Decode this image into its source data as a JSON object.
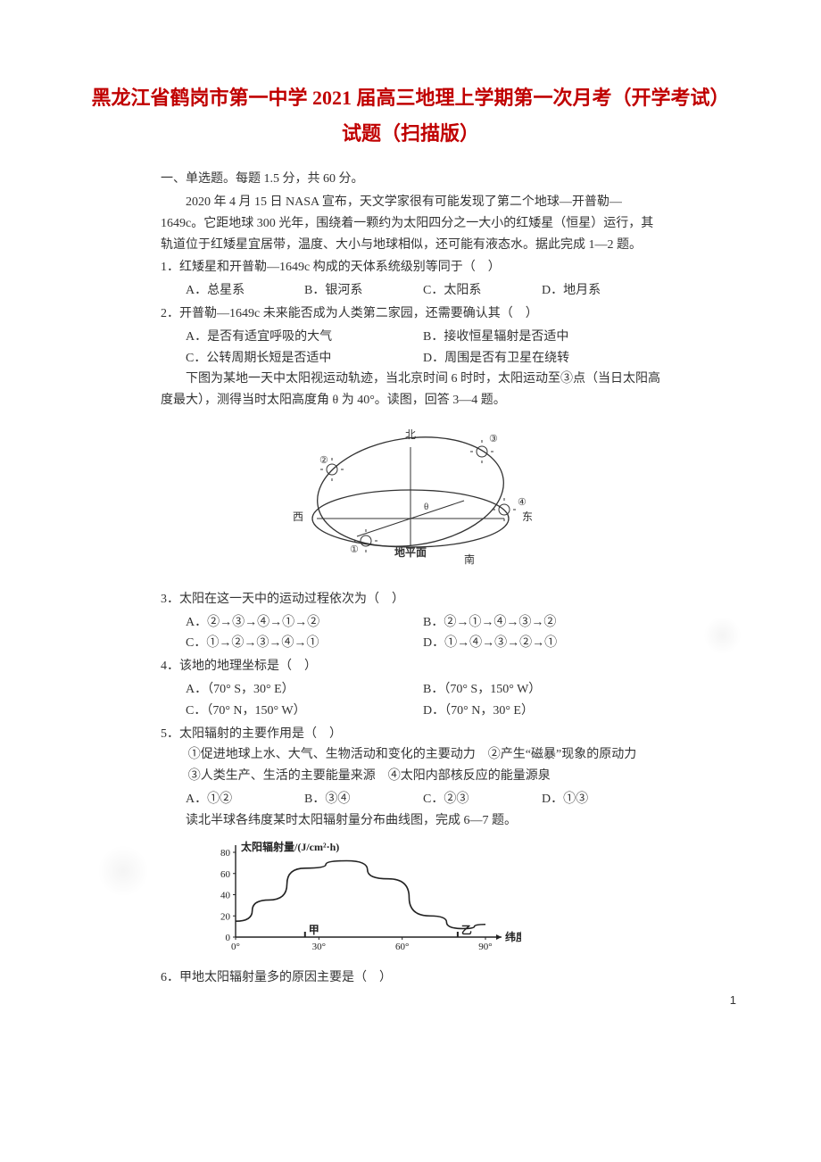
{
  "title_line1": "黑龙江省鹤岗市第一中学 2021 届高三地理上学期第一次月考（开学考试）",
  "title_line2": "试题（扫描版）",
  "section1_head": "一、单选题。每题 1.5 分，共 60 分。",
  "passage1_p1": "2020 年 4 月 15 日 NASA 宣布，天文学家很有可能发现了第二个地球—开普勒—1649c。它距地球 300 光年，围绕着一颗约为太阳四分之一大小的红矮星（恒星）运行，其轨道位于红矮星宜居带，温度、大小与地球相似，还可能有液态水。据此完成 1—2 题。",
  "q1": "1．红矮星和开普勒—1649c 构成的天体系统级别等同于（　）",
  "q1_opts": [
    "A．总星系",
    "B．银河系",
    "C．太阳系",
    "D．地月系"
  ],
  "q2": "2．开普勒—1649c 未来能否成为人类第二家园，还需要确认其（　）",
  "q2_opts": [
    "A．是否有适宜呼吸的大气",
    "B．接收恒星辐射是否适中",
    "C．公转周期长短是否适中",
    "D．周围是否有卫星在绕转"
  ],
  "passage2_p1": "下图为某地一天中太阳视运动轨迹，当北京时间 6 时时，太阳运动至③点（当日太阳高度最大），测得当时太阳高度角 θ 为 40°。读图，回答 3—4 题。",
  "diagram_labels": {
    "north": "北",
    "south": "南",
    "east": "东",
    "west": "西",
    "points": [
      "①",
      "②",
      "③",
      "④"
    ],
    "horizon": "地平面"
  },
  "q3": "3．太阳在这一天中的运动过程依次为（　）",
  "q3_opts": [
    "A．②→③→④→①→②",
    "B．②→①→④→③→②",
    "C．①→②→③→④→①",
    "D．①→④→③→②→①"
  ],
  "q4": "4．该地的地理坐标是（　）",
  "q4_opts": [
    "A．（70° S，30° E）",
    "B．（70° S，150° W）",
    "C．（70° N，150° W）",
    "D．（70° N，30° E）"
  ],
  "q5": "5．太阳辐射的主要作用是（　）",
  "q5_stmts": "①促进地球上水、大气、生物活动和变化的主要动力　②产生“磁暴”现象的原动力　③人类生产、生活的主要能量来源　④太阳内部核反应的能量源泉",
  "q5_opts": [
    "A．①②",
    "B．③④",
    "C．②③",
    "D．①③"
  ],
  "passage3_p1": "读北半球各纬度某时太阳辐射量分布曲线图，完成 6—7 题。",
  "chart": {
    "type": "line",
    "ylabel": "太阳辐射量/(J/cm²·h)",
    "xlabel": "纬度",
    "xticks": [
      "0°",
      "30°",
      "60°",
      "90°"
    ],
    "yticks": [
      0,
      20,
      40,
      60,
      80
    ],
    "ylim": [
      0,
      80
    ],
    "points_x": [
      0,
      12,
      25,
      40,
      55,
      70,
      82,
      90
    ],
    "points_y": [
      15,
      35,
      65,
      72,
      55,
      20,
      8,
      12
    ],
    "markers": {
      "甲": {
        "x": 25,
        "y": 0,
        "label": "甲"
      },
      "乙": {
        "x": 80,
        "y": 0,
        "label": "乙"
      }
    },
    "line_color": "#222222",
    "axis_color": "#222222",
    "text_color": "#222222",
    "background": "#ffffff",
    "font_size_label": 12,
    "font_size_tick": 11
  },
  "q6": "6．甲地太阳辐射量多的原因主要是（　）",
  "page_number": "1"
}
